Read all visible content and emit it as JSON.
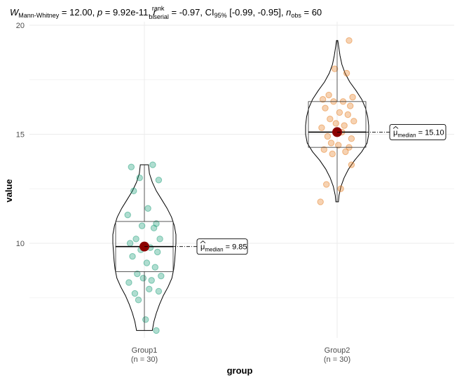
{
  "title": {
    "W": "W",
    "W_sub": "Mann-Whitney",
    "W_val": " = 12.00, ",
    "p": "p",
    "p_val": " = 9.92e-11, ",
    "r": "r",
    "r_sup": "rank",
    "r_sub": "biserial",
    "r_val": " = -0.97, CI",
    "ci_sub": "95%",
    "ci_val": " [-0.99, -0.95], ",
    "n": "n",
    "n_sub": "obs",
    "n_val": " = 60"
  },
  "colors": {
    "group1": "#1b9e77",
    "group2": "#e67e22",
    "median_point": "#8b0000",
    "grid": "#ebebeb"
  },
  "chart_data": {
    "type": "violin-box-scatter",
    "xlabel": "group",
    "ylabel": "value",
    "ylim": [
      5.5,
      20.2
    ],
    "yticks": [
      10,
      15,
      20
    ],
    "grid": true,
    "groups": [
      {
        "name": "Group1",
        "n_label": "(n = 30)",
        "color": "#1b9e77",
        "min": 6.0,
        "q1": 8.7,
        "median": 9.85,
        "q3": 11.0,
        "max": 13.6,
        "median_label_prefix": "μ",
        "median_label_sub": "median",
        "median_label_value": " = 9.85",
        "points": [
          13.5,
          13.6,
          13.0,
          12.9,
          12.4,
          11.6,
          11.3,
          10.9,
          10.8,
          10.7,
          10.2,
          10.2,
          10.0,
          9.8,
          9.7,
          9.6,
          9.4,
          9.1,
          8.9,
          8.6,
          8.5,
          8.4,
          8.3,
          8.2,
          7.9,
          7.7,
          7.8,
          7.4,
          6.5,
          6.0
        ],
        "violin": [
          [
            13.6,
            0.13
          ],
          [
            13.2,
            0.16
          ],
          [
            12.8,
            0.25
          ],
          [
            12.4,
            0.38
          ],
          [
            12.0,
            0.55
          ],
          [
            11.6,
            0.72
          ],
          [
            11.2,
            0.86
          ],
          [
            10.8,
            0.95
          ],
          [
            10.4,
            1.0
          ],
          [
            10.0,
            1.0
          ],
          [
            9.6,
            0.98
          ],
          [
            9.2,
            0.96
          ],
          [
            8.8,
            0.93
          ],
          [
            8.4,
            0.87
          ],
          [
            8.0,
            0.75
          ],
          [
            7.6,
            0.6
          ],
          [
            7.2,
            0.48
          ],
          [
            6.8,
            0.38
          ],
          [
            6.4,
            0.3
          ],
          [
            6.0,
            0.25
          ]
        ]
      },
      {
        "name": "Group2",
        "n_label": "(n = 30)",
        "color": "#e67e22",
        "min": 11.9,
        "q1": 14.4,
        "median": 15.1,
        "q3": 16.5,
        "max": 19.3,
        "median_label_prefix": "μ",
        "median_label_sub": "median",
        "median_label_value": " = 15.10",
        "points": [
          19.3,
          18.0,
          17.8,
          16.8,
          16.7,
          16.6,
          16.5,
          16.5,
          16.3,
          16.2,
          16.0,
          15.9,
          15.7,
          15.6,
          15.5,
          15.4,
          15.3,
          15.1,
          14.9,
          14.8,
          14.6,
          14.5,
          14.4,
          14.3,
          14.2,
          14.1,
          13.6,
          12.7,
          12.5,
          11.9
        ],
        "violin": [
          [
            19.3,
            0.02
          ],
          [
            19.0,
            0.05
          ],
          [
            18.6,
            0.09
          ],
          [
            18.2,
            0.15
          ],
          [
            17.8,
            0.25
          ],
          [
            17.4,
            0.4
          ],
          [
            17.0,
            0.6
          ],
          [
            16.6,
            0.78
          ],
          [
            16.2,
            0.9
          ],
          [
            15.8,
            0.97
          ],
          [
            15.4,
            1.0
          ],
          [
            15.0,
            1.0
          ],
          [
            14.6,
            0.95
          ],
          [
            14.2,
            0.78
          ],
          [
            13.8,
            0.55
          ],
          [
            13.4,
            0.36
          ],
          [
            13.0,
            0.22
          ],
          [
            12.6,
            0.12
          ],
          [
            12.2,
            0.06
          ],
          [
            11.9,
            0.04
          ]
        ]
      }
    ]
  }
}
